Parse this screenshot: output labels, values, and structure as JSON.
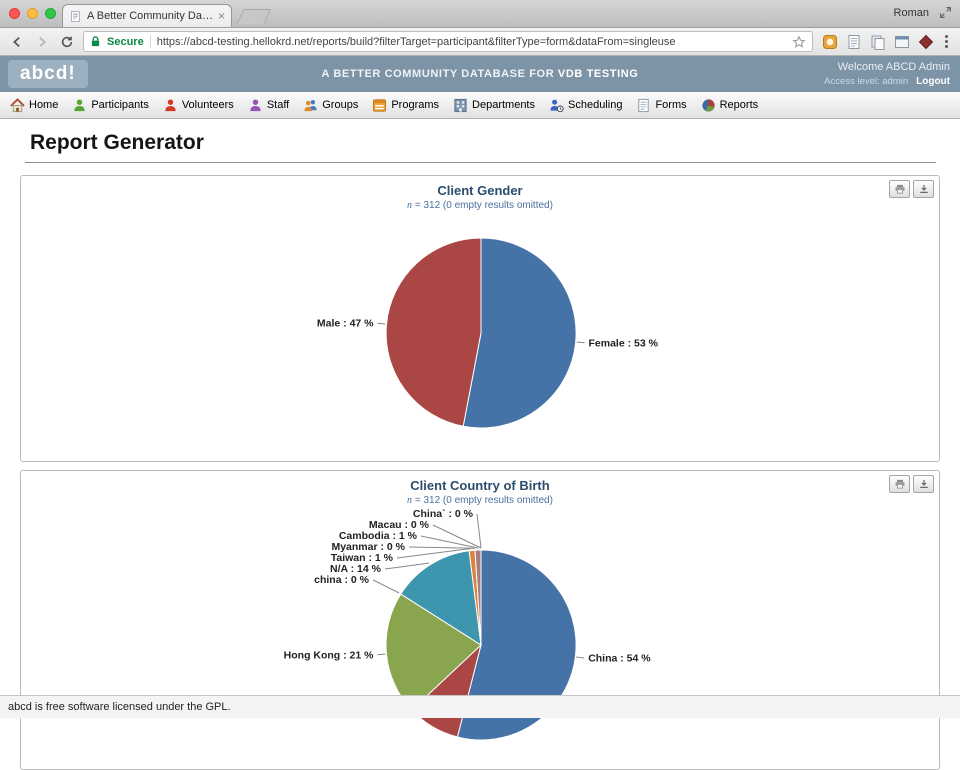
{
  "browser": {
    "tab_title": "A Better Community Databas",
    "close_glyph": "×",
    "profile_name": "Roman",
    "secure_label": "Secure",
    "url": "https://abcd-testing.hellokrd.net/reports/build?filterTarget=participant&filterType=form&dataFrom=singleuse"
  },
  "header": {
    "logo": "abcd!",
    "banner_prefix": "A BETTER COMMUNITY DATABASE FOR ",
    "banner_emphasis": "VDB TESTING",
    "welcome": "Welcome ABCD Admin",
    "access_level": "Access level: admin",
    "logout_label": "Logout"
  },
  "nav": {
    "items": [
      "Home",
      "Participants",
      "Volunteers",
      "Staff",
      "Groups",
      "Programs",
      "Departments",
      "Scheduling",
      "Forms",
      "Reports"
    ]
  },
  "page": {
    "title": "Report Generator"
  },
  "footer": {
    "text": "abcd is free software licensed under the GPL."
  },
  "chart_data": [
    {
      "type": "pie",
      "title": "Client Gender",
      "subtitle_n": "n",
      "subtitle_rest": "= 312 (0 empty results omitted)",
      "legend_position": "none",
      "series": [
        {
          "label": "Female",
          "value": 53,
          "color": "#4572A7"
        },
        {
          "label": "Male",
          "value": 47,
          "color": "#AA4643"
        }
      ]
    },
    {
      "type": "pie",
      "title": "Client Country of Birth",
      "subtitle_n": "n",
      "subtitle_rest": "= 312 (0 empty results omitted)",
      "legend_position": "none",
      "series": [
        {
          "label": "China",
          "value": 54,
          "color": "#4572A7"
        },
        {
          "label": "",
          "value": 9,
          "color": "#AA4643"
        },
        {
          "label": "Hong Kong",
          "value": 21,
          "color": "#89A54E"
        },
        {
          "label": "china",
          "value": 0,
          "color": "#80699B"
        },
        {
          "label": "N/A",
          "value": 14,
          "color": "#3D96AE"
        },
        {
          "label": "Taiwan",
          "value": 1,
          "color": "#DB843D"
        },
        {
          "label": "Myanmar",
          "value": 0,
          "color": "#92A8CD"
        },
        {
          "label": "Cambodia",
          "value": 1,
          "color": "#A47D7C"
        },
        {
          "label": "Macau",
          "value": 0,
          "color": "#B5CA92"
        },
        {
          "label": "China`",
          "value": 0,
          "color": "#4572A7"
        }
      ]
    }
  ]
}
